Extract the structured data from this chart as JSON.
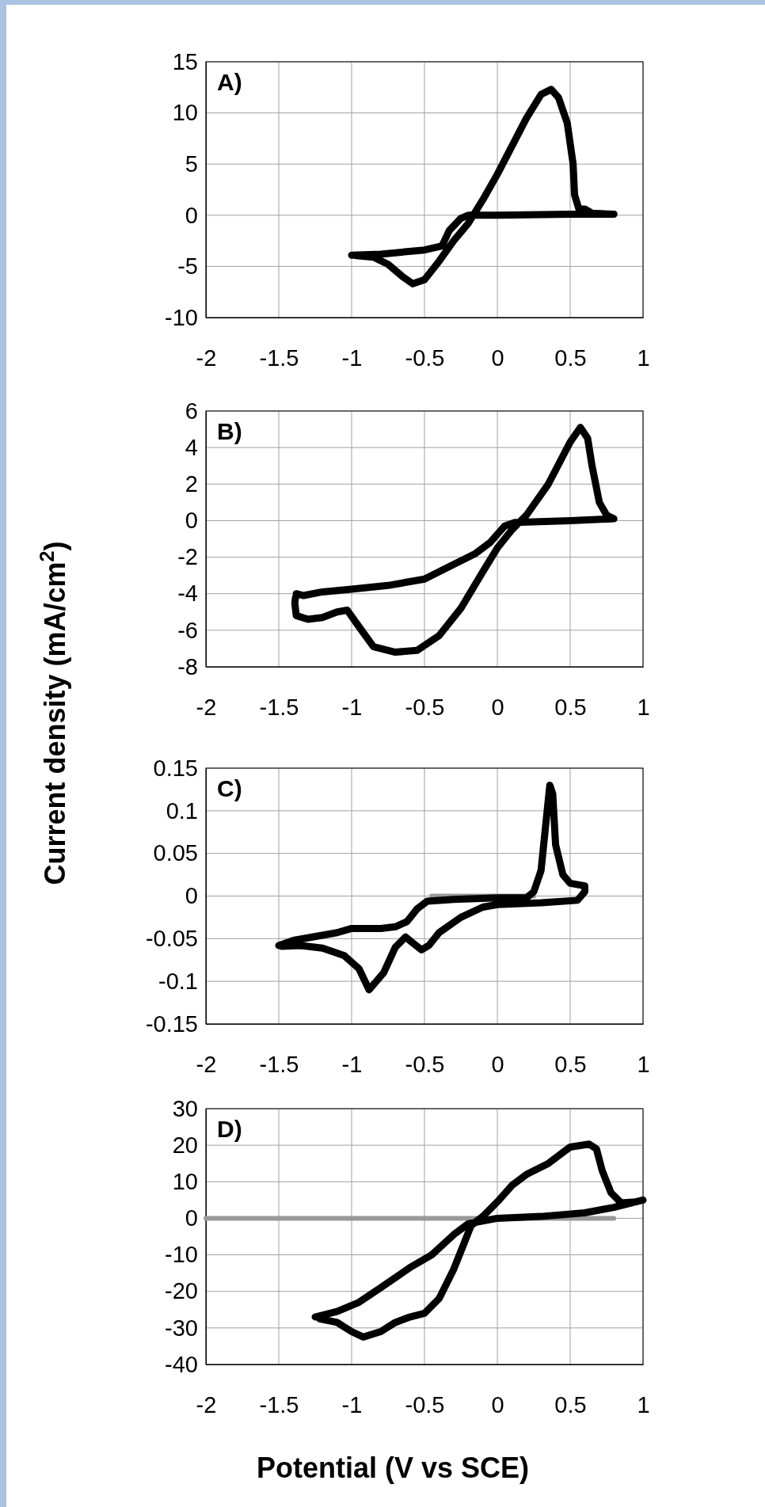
{
  "chart_data": [
    {
      "type": "line",
      "title": "A)",
      "xlim": [
        -2,
        1
      ],
      "xticks": [
        -2,
        -1.5,
        -1,
        -0.5,
        0,
        0.5,
        1
      ],
      "ylim": [
        -10,
        15
      ],
      "yticks": [
        -10,
        -5,
        0,
        5,
        10,
        15
      ],
      "grid": true,
      "marker": "none",
      "line_style": "solid",
      "series": [
        {
          "color": "#000000",
          "x": [
            -1,
            -0.8,
            -0.5,
            -0.38,
            -0.33,
            -0.25,
            -0.2,
            0,
            0.5,
            0.8,
            0.65,
            0.6,
            0.56,
            0.53,
            0.52,
            0.48,
            0.42,
            0.37,
            0.3,
            0.2,
            0,
            -0.1,
            -0.2,
            -0.3,
            -0.4,
            -0.5,
            -0.58,
            -0.65,
            -0.75,
            -0.85,
            -0.97
          ],
          "values": [
            -3.9,
            -3.8,
            -3.4,
            -3,
            -1.5,
            -0.3,
            0,
            0,
            0.1,
            0.1,
            0.2,
            0.6,
            0.6,
            2,
            5,
            9,
            11.5,
            12.3,
            11.8,
            9.5,
            4,
            1.5,
            -0.8,
            -2.5,
            -4.5,
            -6.3,
            -6.7,
            -6,
            -4.8,
            -4.1,
            -3.95
          ]
        }
      ]
    },
    {
      "type": "line",
      "title": "B)",
      "ylabel": "Current density (mA/cm$^{2}$)",
      "xlim": [
        -2,
        1
      ],
      "xticks": [
        -2,
        -1.5,
        -1,
        -0.5,
        0,
        0.5,
        1
      ],
      "ylim": [
        -8,
        6
      ],
      "yticks": [
        -8,
        -6,
        -4,
        -2,
        0,
        2,
        4,
        6
      ],
      "grid": true,
      "marker": "none",
      "line_style": "solid",
      "series": [
        {
          "color": "#000000",
          "x": [
            -1.38,
            -1.33,
            -1.2,
            -1,
            -0.75,
            -0.5,
            -0.3,
            -0.15,
            -0.05,
            0.05,
            0.12,
            0.5,
            0.8,
            0.75,
            0.7,
            0.65,
            0.62,
            0.57,
            0.5,
            0.35,
            0.2,
            0.1,
            0,
            -0.1,
            -0.25,
            -0.4,
            -0.55,
            -0.7,
            -0.85,
            -0.95,
            -1.03,
            -1.1,
            -1.2,
            -1.3,
            -1.38,
            -1.39,
            -1.385
          ],
          "values": [
            -4,
            -4.1,
            -3.9,
            -3.75,
            -3.55,
            -3.2,
            -2.4,
            -1.8,
            -1.2,
            -0.3,
            -0.1,
            0,
            0.1,
            0.3,
            1,
            3,
            4.5,
            5.1,
            4.3,
            2,
            0.3,
            -0.5,
            -1.5,
            -2.8,
            -4.8,
            -6.3,
            -7.1,
            -7.2,
            -6.9,
            -5.8,
            -4.9,
            -5,
            -5.3,
            -5.4,
            -5.2,
            -4.5,
            -4.2
          ]
        }
      ]
    },
    {
      "type": "line",
      "title": "C)",
      "xlim": [
        -2,
        1
      ],
      "xticks": [
        -2,
        -1.5,
        -1,
        -0.5,
        0,
        0.5,
        1
      ],
      "ylim": [
        -0.15,
        0.15
      ],
      "yticks": [
        -0.15,
        -0.1,
        -0.05,
        0,
        0.05,
        0.1,
        0.15
      ],
      "grid": true,
      "marker": "none",
      "line_style": "solid",
      "series": [
        {
          "color": "#999999",
          "x": [
            -0.45,
            0.25
          ],
          "values": [
            0,
            0
          ]
        },
        {
          "color": "#000000",
          "x": [
            -1.5,
            -1.4,
            -1.2,
            -1.1,
            -1,
            -0.8,
            -0.7,
            -0.62,
            -0.55,
            -0.48,
            -0.3,
            0,
            0.2,
            0.25,
            0.3,
            0.33,
            0.36,
            0.38,
            0.4,
            0.45,
            0.5,
            0.6,
            0.6,
            0.55,
            0.3,
            0,
            -0.1,
            -0.25,
            -0.4,
            -0.47,
            -0.52,
            -0.58,
            -0.63,
            -0.7,
            -0.78,
            -0.88,
            -0.95,
            -1.05,
            -1.2,
            -1.35,
            -1.48
          ],
          "values": [
            -0.058,
            -0.052,
            -0.046,
            -0.043,
            -0.038,
            -0.038,
            -0.036,
            -0.03,
            -0.015,
            -0.006,
            -0.004,
            -0.002,
            -0.002,
            0.005,
            0.03,
            0.08,
            0.13,
            0.12,
            0.06,
            0.025,
            0.015,
            0.012,
            0.005,
            -0.005,
            -0.008,
            -0.01,
            -0.013,
            -0.025,
            -0.043,
            -0.058,
            -0.063,
            -0.055,
            -0.048,
            -0.06,
            -0.09,
            -0.11,
            -0.085,
            -0.07,
            -0.061,
            -0.058,
            -0.059
          ]
        }
      ]
    },
    {
      "type": "line",
      "title": "D)",
      "xlabel": "Potential (V vs SCE)",
      "xlim": [
        -2,
        1
      ],
      "xticks": [
        -2,
        -1.5,
        -1,
        -0.5,
        0,
        0.5,
        1
      ],
      "ylim": [
        -40,
        30
      ],
      "yticks": [
        -40,
        -30,
        -20,
        -10,
        0,
        10,
        20,
        30
      ],
      "grid": true,
      "marker": "none",
      "line_style": "solid",
      "series": [
        {
          "color": "#999999",
          "x": [
            -2,
            0.8
          ],
          "values": [
            0,
            0
          ]
        },
        {
          "color": "#000000",
          "x": [
            -1.25,
            -1.1,
            -0.95,
            -0.8,
            -0.6,
            -0.45,
            -0.3,
            -0.2,
            0,
            0.3,
            0.6,
            0.8,
            0.95,
            1,
            0.95,
            0.85,
            0.78,
            0.72,
            0.68,
            0.63,
            0.5,
            0.35,
            0.2,
            0.1,
            0,
            -0.1,
            -0.18,
            -0.23,
            -0.3,
            -0.4,
            -0.5,
            -0.6,
            -0.7,
            -0.8,
            -0.92,
            -1,
            -1.1,
            -1.22
          ],
          "values": [
            -27,
            -25.5,
            -23,
            -19,
            -13.5,
            -10,
            -4.5,
            -1.5,
            0,
            0.5,
            1.5,
            3,
            4.5,
            5,
            4.5,
            4.2,
            7,
            13,
            19,
            20.3,
            19.5,
            15,
            12,
            9,
            4.5,
            0.5,
            -2,
            -7,
            -14,
            -22,
            -26,
            -27,
            -28.5,
            -31,
            -32.5,
            -31,
            -28.5,
            -27.5
          ]
        }
      ]
    }
  ]
}
